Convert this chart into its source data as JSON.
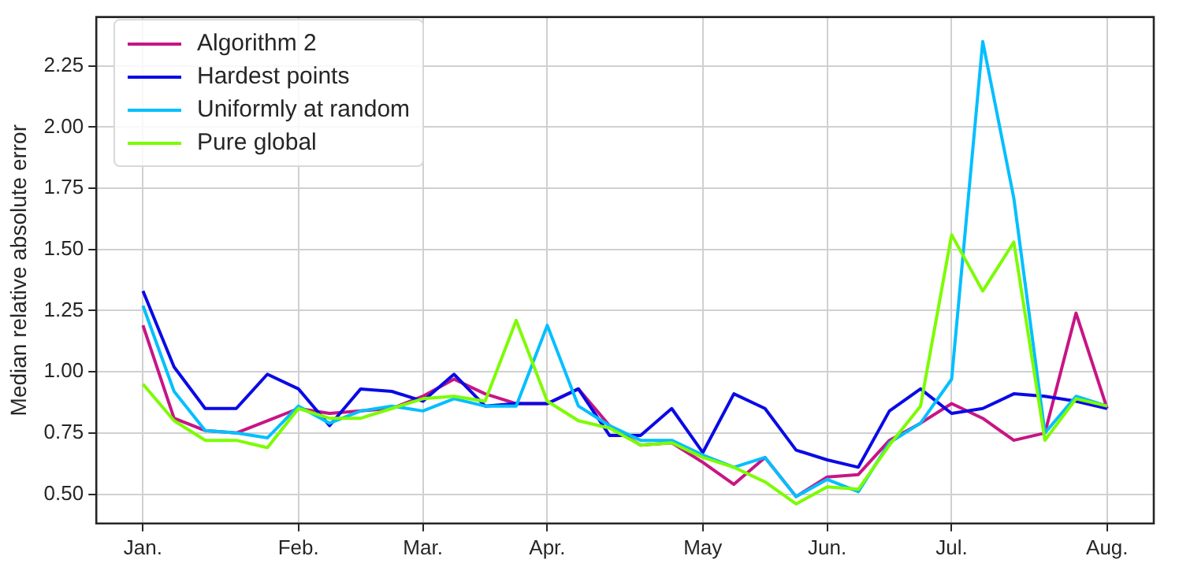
{
  "chart_data": {
    "type": "line",
    "ylabel": "Median relative absolute error",
    "categories": [
      "Jan.",
      null,
      null,
      null,
      null,
      "Feb.",
      null,
      null,
      null,
      "Mar.",
      null,
      null,
      null,
      "Apr.",
      null,
      null,
      null,
      null,
      "May",
      null,
      null,
      null,
      "Jun.",
      null,
      null,
      null,
      "Jul.",
      null,
      null,
      null,
      null,
      "Aug."
    ],
    "ylim": [
      0.38,
      2.45
    ],
    "yticks": [
      {
        "value": 0.5,
        "label": "0.50"
      },
      {
        "value": 0.75,
        "label": "0.75"
      },
      {
        "value": 1,
        "label": "1.00"
      },
      {
        "value": 1.25,
        "label": "1.25"
      },
      {
        "value": 1.5,
        "label": "1.50"
      },
      {
        "value": 1.75,
        "label": "1.75"
      },
      {
        "value": 2,
        "label": "2.00"
      },
      {
        "value": 2.25,
        "label": "2.25"
      }
    ],
    "grid": true,
    "legend": "top left",
    "series": [
      {
        "name": "Algorithm 2",
        "color": "#c71585",
        "values": [
          1.19,
          0.81,
          0.76,
          0.75,
          0.8,
          0.85,
          0.83,
          0.84,
          0.85,
          0.9,
          0.97,
          0.91,
          0.87,
          0.87,
          0.93,
          0.78,
          0.7,
          0.71,
          0.63,
          0.54,
          0.65,
          0.49,
          0.57,
          0.58,
          0.72,
          0.79,
          0.87,
          0.81,
          0.72,
          0.75,
          1.24,
          0.85
        ]
      },
      {
        "name": "Hardest points",
        "color": "#0a0ae6",
        "values": [
          1.33,
          1.02,
          0.85,
          0.85,
          0.99,
          0.93,
          0.78,
          0.93,
          0.92,
          0.88,
          0.99,
          0.86,
          0.87,
          0.87,
          0.93,
          0.74,
          0.74,
          0.85,
          0.67,
          0.91,
          0.85,
          0.68,
          0.64,
          0.61,
          0.84,
          0.93,
          0.83,
          0.85,
          0.91,
          0.9,
          0.88,
          0.85
        ]
      },
      {
        "name": "Uniformly at random",
        "color": "#00bfff",
        "values": [
          1.27,
          0.92,
          0.76,
          0.75,
          0.73,
          0.86,
          0.79,
          0.84,
          0.86,
          0.84,
          0.89,
          0.86,
          0.86,
          1.19,
          0.86,
          0.78,
          0.72,
          0.72,
          0.66,
          0.61,
          0.65,
          0.49,
          0.56,
          0.51,
          0.71,
          0.79,
          0.97,
          2.35,
          1.71,
          0.75,
          0.9,
          0.86
        ]
      },
      {
        "name": "Pure global",
        "color": "#7cfc00",
        "values": [
          0.95,
          0.8,
          0.72,
          0.72,
          0.69,
          0.85,
          0.81,
          0.81,
          0.85,
          0.89,
          0.9,
          0.88,
          1.21,
          0.88,
          0.8,
          0.77,
          0.7,
          0.71,
          0.65,
          0.61,
          0.55,
          0.46,
          0.53,
          0.52,
          0.7,
          0.86,
          1.56,
          1.33,
          1.53,
          0.72,
          0.89,
          0.86
        ]
      }
    ]
  }
}
